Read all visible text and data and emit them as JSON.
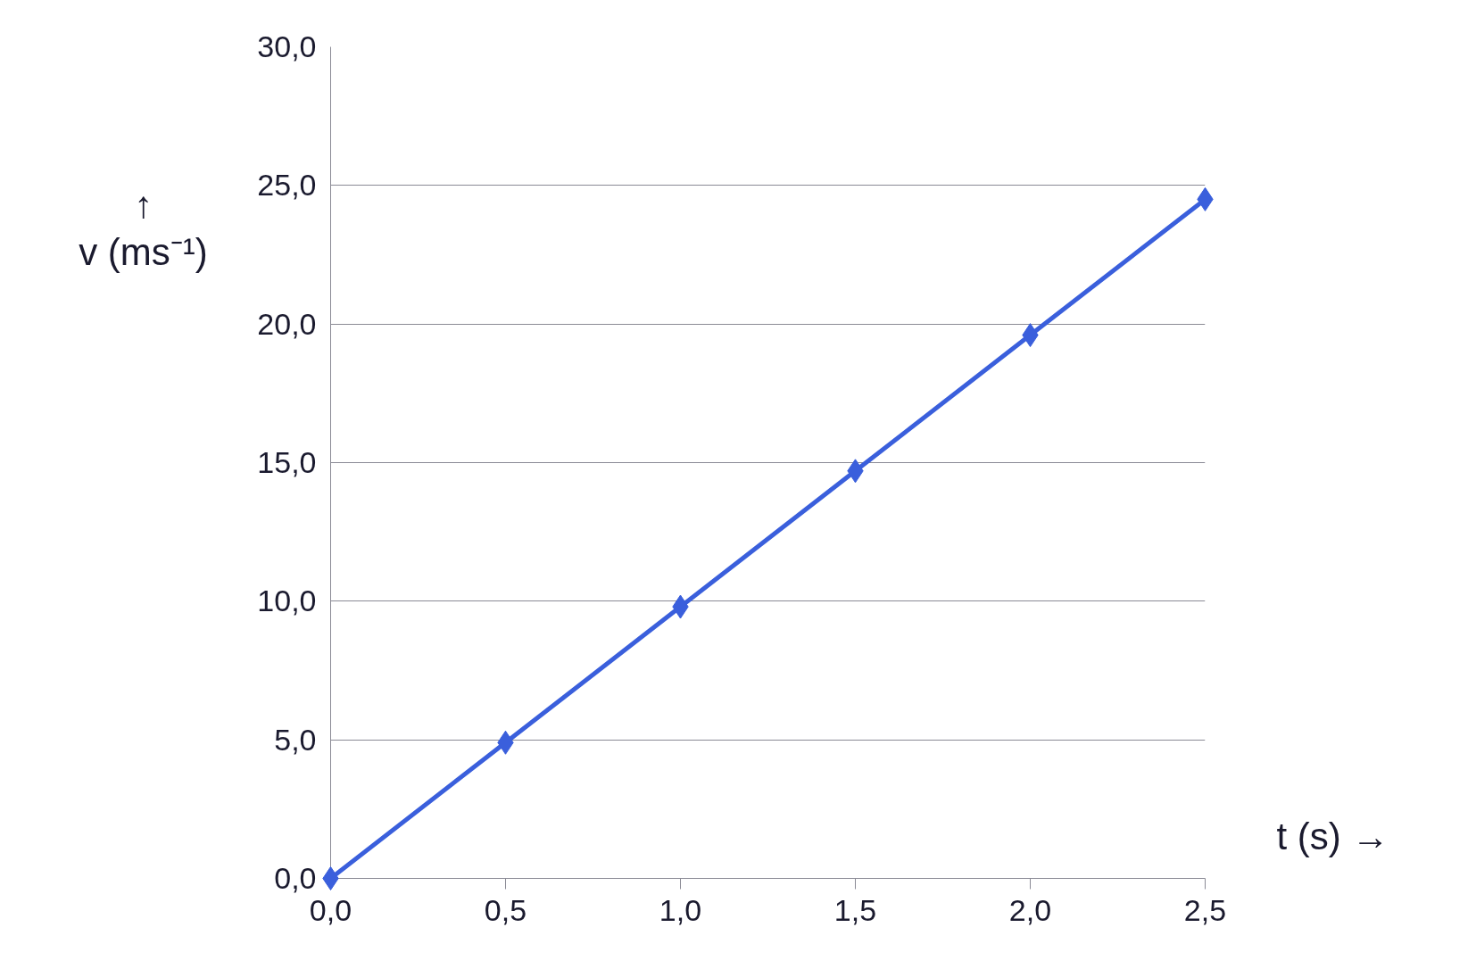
{
  "chart_data": {
    "type": "line",
    "xlabel": "t (s) →",
    "ylabel": "↑\nv (ms⁻¹)",
    "x": [
      0,
      0.5,
      1.0,
      1.5,
      2.0,
      2.5
    ],
    "series": [
      {
        "color": "#3a5fdc",
        "values": [
          0,
          4.9,
          9.8,
          14.7,
          19.6,
          24.5
        ]
      }
    ],
    "xlim": [
      0,
      2.5
    ],
    "ylim": [
      0,
      30
    ],
    "xticks": [
      {
        "value": 0,
        "label": "0,0"
      },
      {
        "value": 0.5,
        "label": "0,5"
      },
      {
        "value": 1.0,
        "label": "1,0"
      },
      {
        "value": 1.5,
        "label": "1,5"
      },
      {
        "value": 2.0,
        "label": "2,0"
      },
      {
        "value": 2.5,
        "label": "2,5"
      }
    ],
    "yticks": [
      {
        "value": 0,
        "label": "0,0"
      },
      {
        "value": 5,
        "label": "5,0"
      },
      {
        "value": 10,
        "label": "10,0"
      },
      {
        "value": 15,
        "label": "15,0"
      },
      {
        "value": 20,
        "label": "20,0"
      },
      {
        "value": 25,
        "label": "25,0"
      },
      {
        "value": 30,
        "label": "30,0"
      }
    ],
    "grid": "y",
    "marker": "diamond",
    "line_style": "solid"
  }
}
